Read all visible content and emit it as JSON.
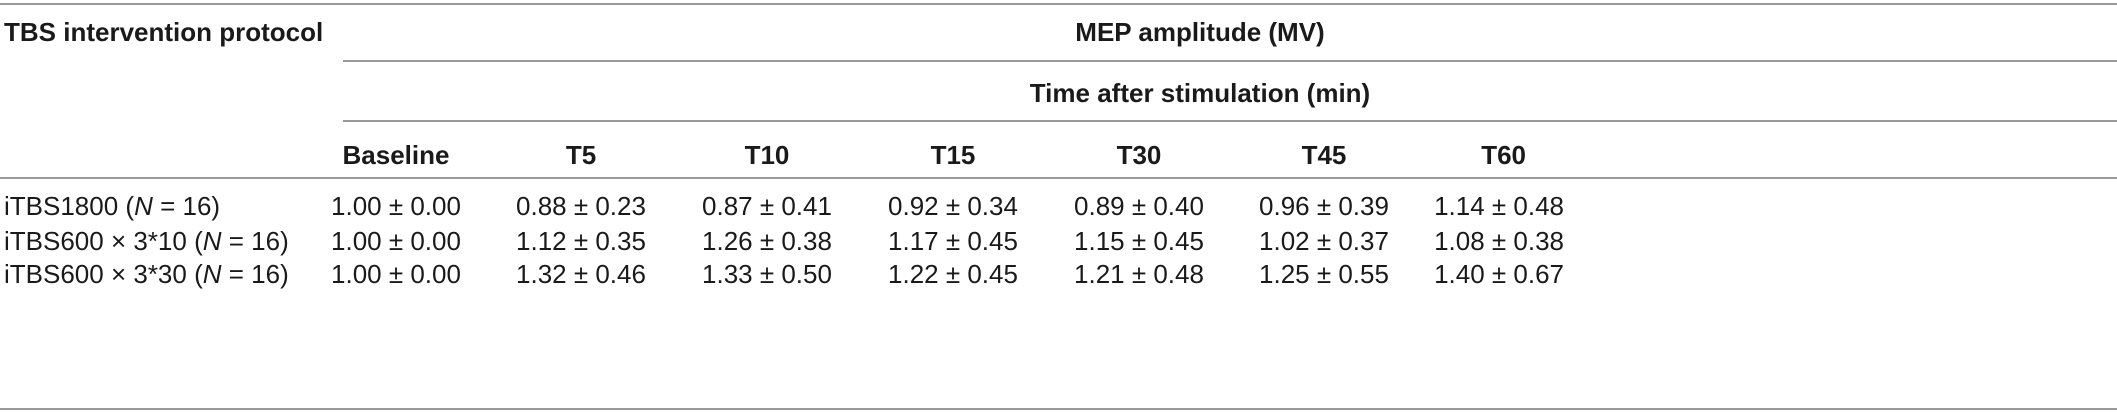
{
  "table": {
    "stub_header": "TBS intervention protocol",
    "group_header": "MEP amplitude (MV)",
    "sub_header": "Time after stimulation (min)",
    "columns": [
      "Baseline",
      "T5",
      "T10",
      "T15",
      "T30",
      "T45",
      "T60"
    ],
    "rows": [
      {
        "label_pre": "iTBS1800 (",
        "label_n": "N",
        "label_post": " = 16)",
        "values": [
          "1.00 ± 0.00",
          "0.88 ± 0.23",
          "0.87 ± 0.41",
          "0.92 ± 0.34",
          "0.89 ± 0.40",
          "0.96 ± 0.39",
          "1.14 ± 0.48"
        ]
      },
      {
        "label_pre": "iTBS600 × 3*10 (",
        "label_n": "N",
        "label_post": " = 16)",
        "values": [
          "1.00 ± 0.00",
          "1.12 ± 0.35",
          "1.26 ± 0.38",
          "1.17 ± 0.45",
          "1.15 ± 0.45",
          "1.02 ± 0.37",
          "1.08 ± 0.38"
        ]
      },
      {
        "label_pre": "iTBS600 × 3*30 (",
        "label_n": "N",
        "label_post": " = 16)",
        "values": [
          "1.00 ± 0.00",
          "1.32 ± 0.46",
          "1.33 ± 0.50",
          "1.22 ± 0.45",
          "1.21 ± 0.48",
          "1.25 ± 0.55",
          "1.40 ± 0.67"
        ]
      }
    ]
  }
}
